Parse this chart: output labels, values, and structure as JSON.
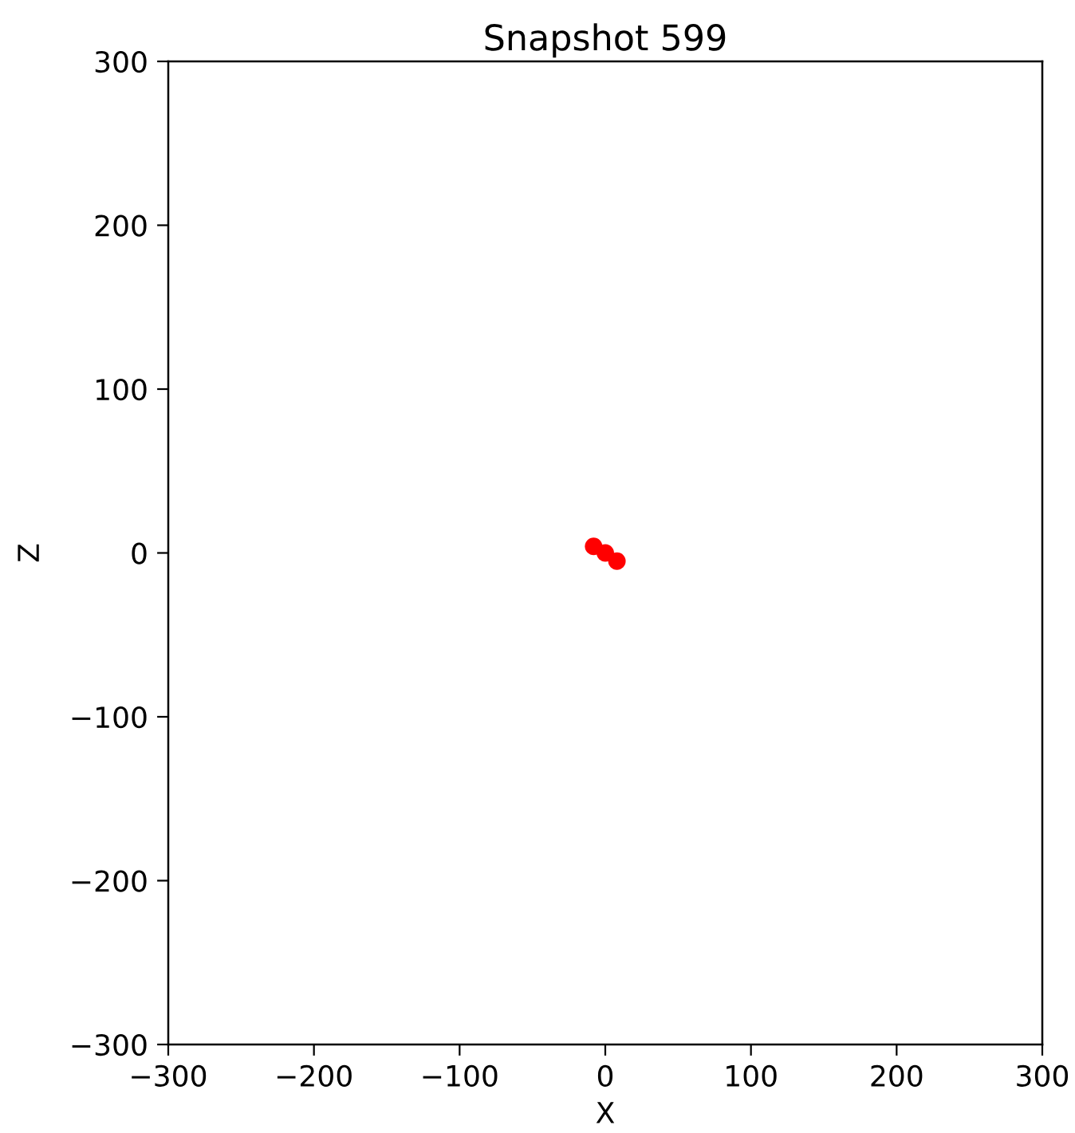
{
  "chart_data": {
    "type": "scatter",
    "title": "Snapshot 599",
    "xlabel": "X",
    "ylabel": "Z",
    "x": [
      -8,
      0,
      8
    ],
    "values": [
      4,
      0,
      -5
    ],
    "color": "#ff0000",
    "marker": "circle",
    "xlim": [
      -300,
      300
    ],
    "ylim": [
      -300,
      300
    ],
    "xticks": [
      -300,
      -200,
      -100,
      0,
      100,
      200,
      300
    ],
    "yticks": [
      -300,
      -200,
      -100,
      0,
      100,
      200,
      300
    ]
  }
}
